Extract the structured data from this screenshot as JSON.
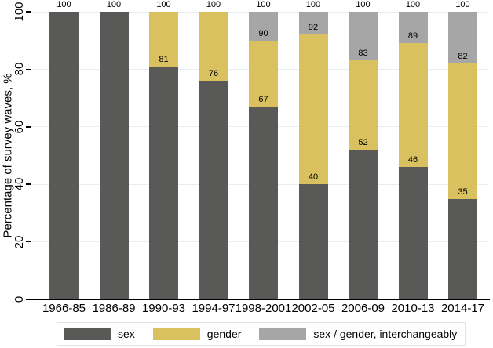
{
  "chart_data": {
    "type": "bar",
    "stacked": true,
    "orientation": "vertical",
    "title": "",
    "xlabel": "",
    "ylabel": "Percentage of survey waves, %",
    "ylim": [
      0,
      100
    ],
    "yticks": [
      0,
      20,
      40,
      60,
      80,
      100
    ],
    "grid": "horizontal",
    "legend_position": "bottom",
    "categories": [
      "1966-85",
      "1986-89",
      "1990-93",
      "1994-97",
      "1998-2001",
      "2002-05",
      "2006-09",
      "2010-13",
      "2014-17"
    ],
    "series": [
      {
        "name": "sex",
        "color": "#595957",
        "values": [
          100,
          100,
          81,
          76,
          67,
          40,
          52,
          46,
          35
        ]
      },
      {
        "name": "gender",
        "color": "#d8c15e",
        "values": [
          0,
          0,
          19,
          24,
          23,
          52,
          31,
          43,
          47
        ]
      },
      {
        "name": "sex / gender, interchangeably",
        "color": "#a6a6a6",
        "values": [
          0,
          0,
          0,
          0,
          10,
          8,
          17,
          11,
          18
        ]
      }
    ],
    "value_labels": {
      "total": [
        "100",
        "100",
        "100",
        "100",
        "100",
        "100",
        "100",
        "100",
        "100"
      ],
      "sex_boundary": [
        null,
        null,
        "81",
        "76",
        "67",
        "40",
        "52",
        "46",
        "35"
      ],
      "sex_gender_boundary": [
        null,
        null,
        null,
        null,
        "90",
        "92",
        "83",
        "89",
        "82"
      ]
    }
  },
  "colors": {
    "background": "#ffffff",
    "gridline": "#e6eef3",
    "axis": "#000000",
    "legend_border": "#dce5ea",
    "label_text": "#000000"
  }
}
